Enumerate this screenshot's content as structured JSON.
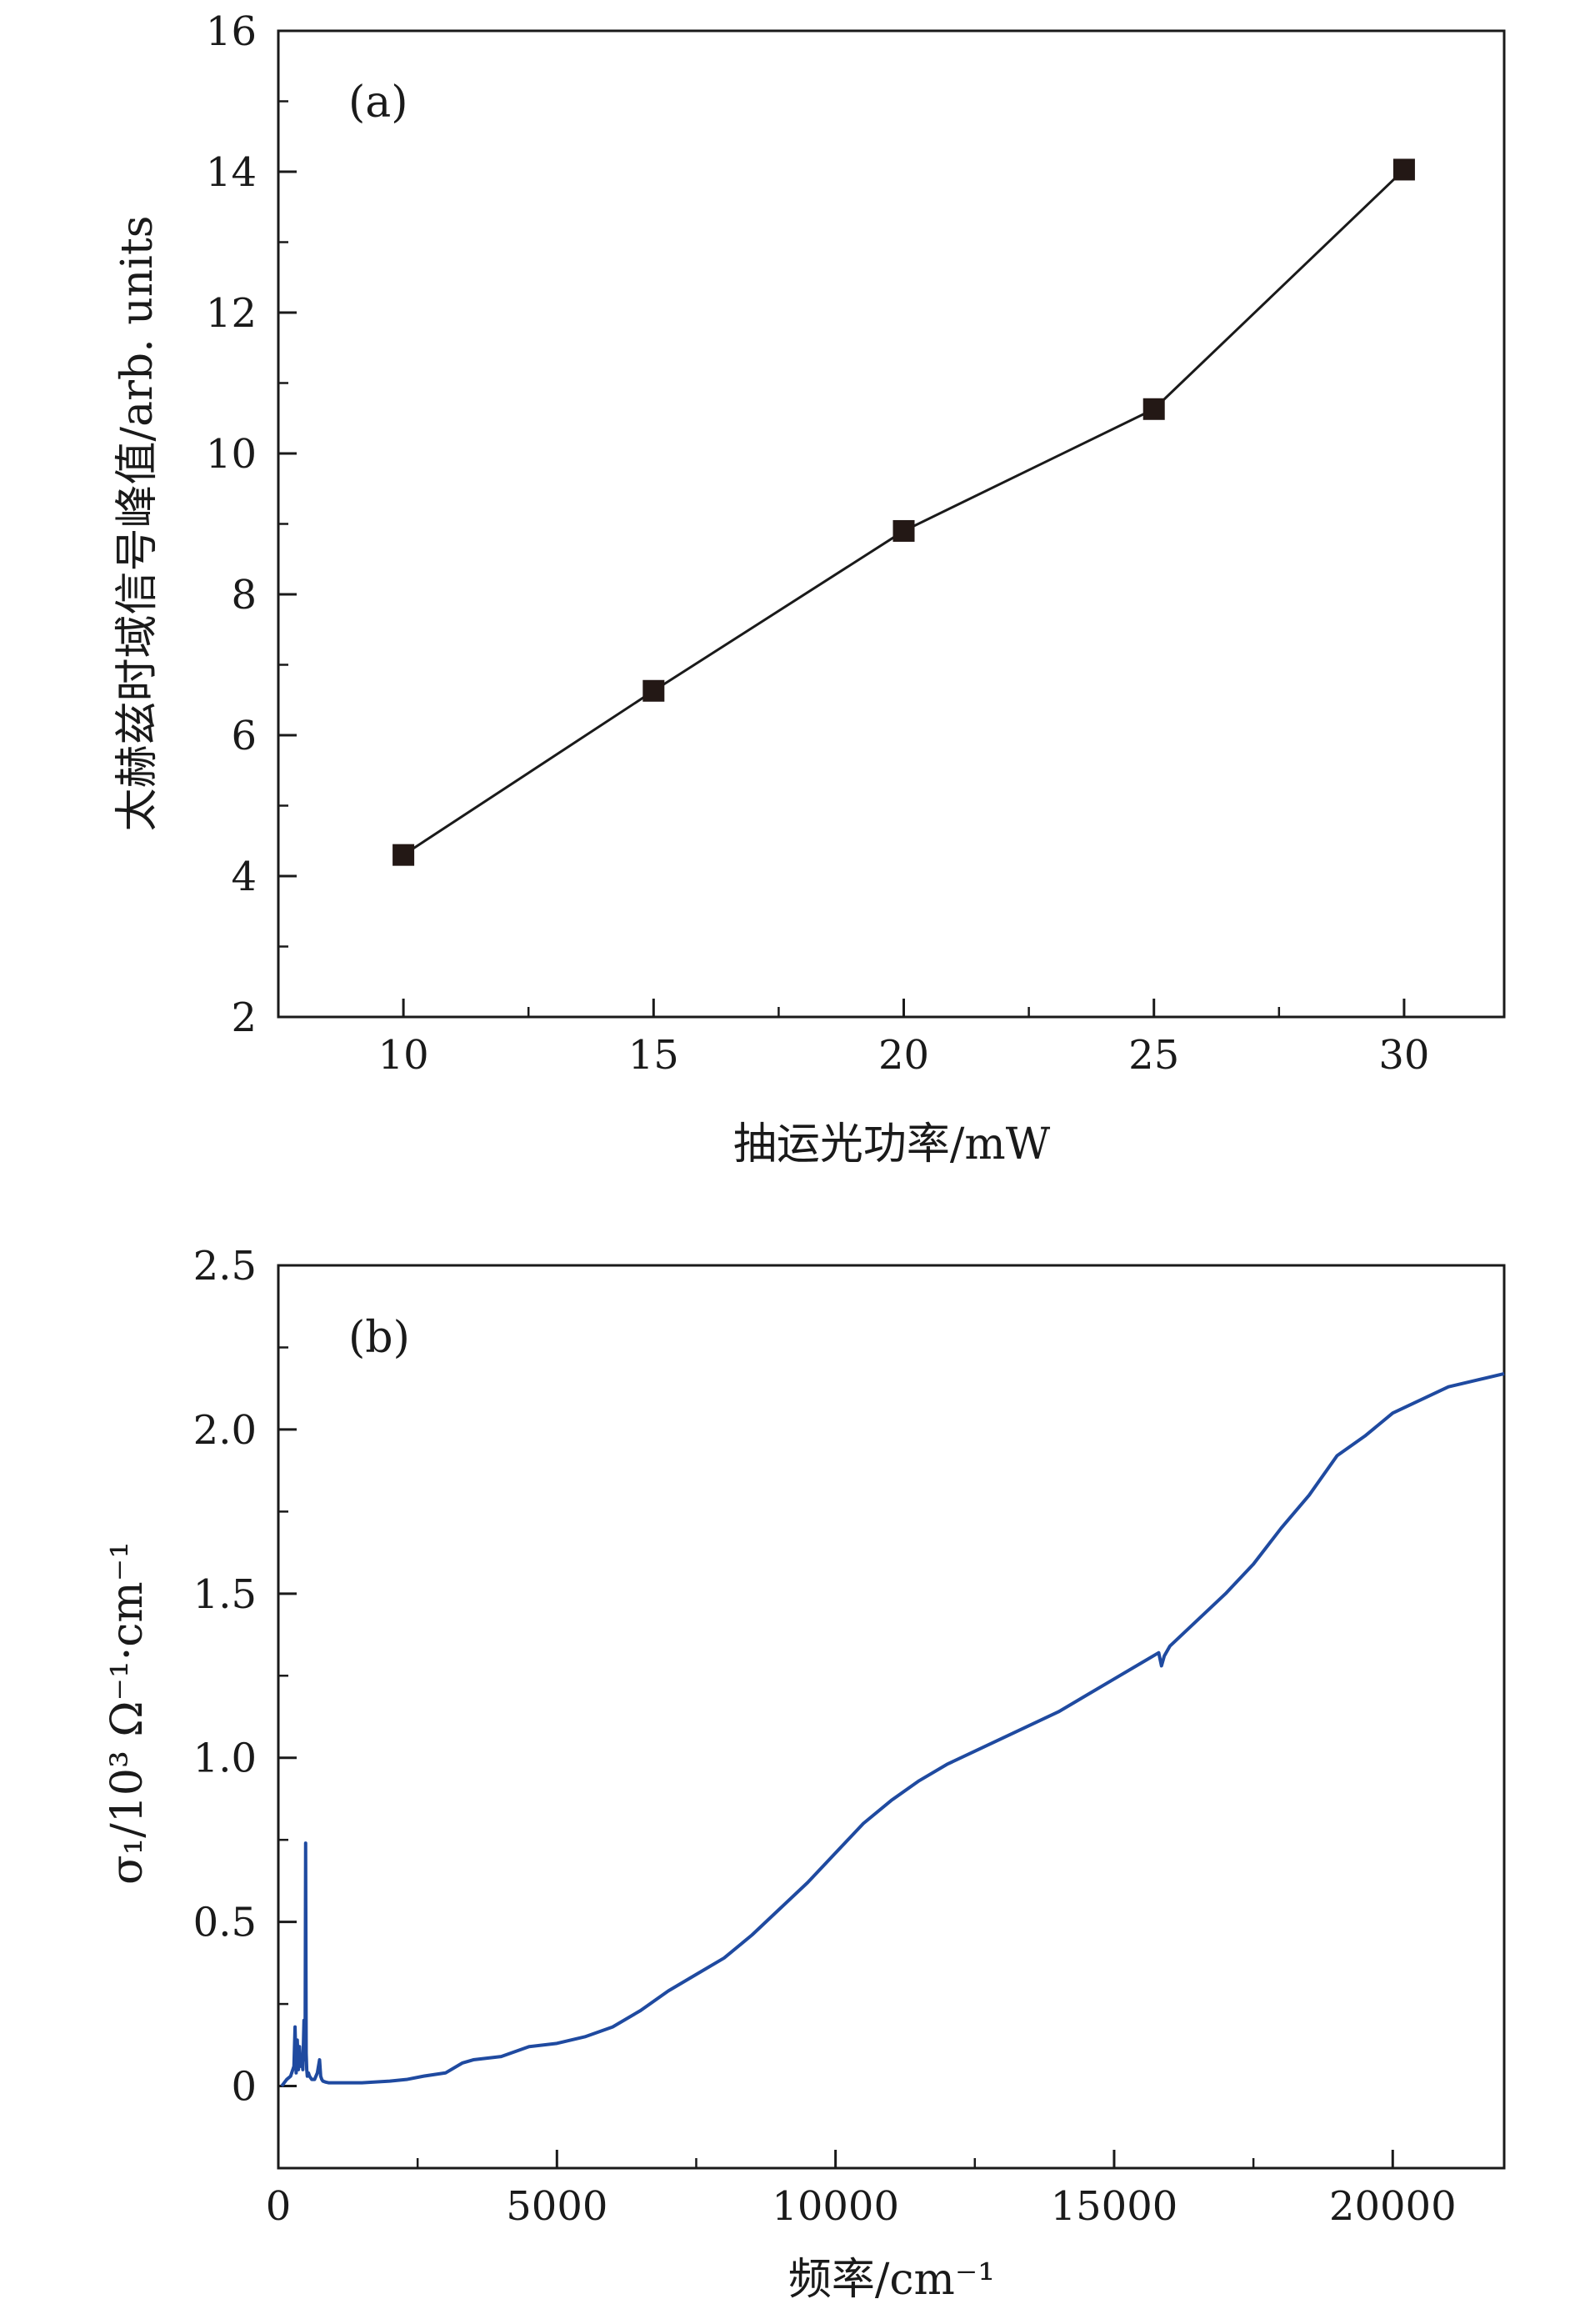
{
  "chart_data": [
    {
      "type": "line",
      "panel_label": "(a)",
      "xlabel": "抽运光功率/mW",
      "ylabel": "太赫兹时域信号峰值/arb. units",
      "xlim": [
        7.5,
        32
      ],
      "ylim": [
        2,
        16
      ],
      "x_ticks": [
        10,
        15,
        20,
        25,
        30
      ],
      "x_tick_labels": [
        "10",
        "15",
        "20",
        "25",
        "30"
      ],
      "y_ticks": [
        2,
        4,
        6,
        8,
        10,
        12,
        14,
        16
      ],
      "y_tick_labels": [
        "2",
        "4",
        "6",
        "8",
        "10",
        "12",
        "14",
        "16"
      ],
      "grid": false,
      "marker": "square",
      "line_color": "#1a1a1a",
      "marker_color": "#231815",
      "series": [
        {
          "name": "peak",
          "x": [
            10,
            15,
            20,
            25,
            30
          ],
          "y": [
            4.3,
            6.63,
            8.9,
            10.63,
            14.03
          ]
        }
      ]
    },
    {
      "type": "line",
      "panel_label": "(b)",
      "xlabel": "频率/cm⁻¹",
      "ylabel": "σ₁/10³ Ω⁻¹·cm⁻¹",
      "xlim": [
        0,
        22000
      ],
      "ylim": [
        -0.25,
        2.5
      ],
      "x_ticks": [
        0,
        5000,
        10000,
        15000,
        20000
      ],
      "x_tick_labels": [
        "0",
        "5000",
        "10000",
        "15000",
        "20000"
      ],
      "y_ticks": [
        0,
        0.5,
        1.0,
        1.5,
        2.0,
        2.5
      ],
      "y_tick_labels": [
        "0",
        "0.5",
        "1.0",
        "1.5",
        "2.0",
        "2.5"
      ],
      "grid": false,
      "line_color": "#1f4aa0",
      "series": [
        {
          "name": "sigma1",
          "x": [
            60,
            150,
            220,
            280,
            300,
            320,
            340,
            360,
            380,
            400,
            420,
            440,
            460,
            480,
            490,
            500,
            510,
            520,
            540,
            560,
            600,
            650,
            700,
            740,
            760,
            780,
            800,
            850,
            900,
            1000,
            1200,
            1500,
            2000,
            2300,
            2600,
            3000,
            3300,
            3500,
            4000,
            4500,
            5000,
            5500,
            6000,
            6500,
            7000,
            7500,
            8000,
            8500,
            9000,
            9500,
            10000,
            10500,
            11000,
            11500,
            12000,
            12500,
            13000,
            13500,
            14000,
            14500,
            15000,
            15500,
            15800,
            15850,
            15900,
            16000,
            16500,
            17000,
            17500,
            18000,
            18500,
            19000,
            19500,
            20000,
            20500,
            21000,
            21500,
            22000
          ],
          "y": [
            0.0,
            0.02,
            0.03,
            0.06,
            0.18,
            0.04,
            0.14,
            0.05,
            0.12,
            0.06,
            0.09,
            0.05,
            0.2,
            0.08,
            0.74,
            0.1,
            0.05,
            0.03,
            0.04,
            0.03,
            0.02,
            0.02,
            0.04,
            0.08,
            0.03,
            0.02,
            0.015,
            0.012,
            0.01,
            0.01,
            0.01,
            0.01,
            0.015,
            0.02,
            0.03,
            0.04,
            0.07,
            0.08,
            0.09,
            0.12,
            0.13,
            0.15,
            0.18,
            0.23,
            0.29,
            0.34,
            0.39,
            0.46,
            0.54,
            0.62,
            0.71,
            0.8,
            0.87,
            0.93,
            0.98,
            1.02,
            1.06,
            1.1,
            1.14,
            1.19,
            1.24,
            1.29,
            1.32,
            1.28,
            1.31,
            1.34,
            1.42,
            1.5,
            1.59,
            1.7,
            1.8,
            1.92,
            1.98,
            2.05,
            2.09,
            2.13,
            2.15,
            2.17
          ]
        }
      ]
    }
  ]
}
